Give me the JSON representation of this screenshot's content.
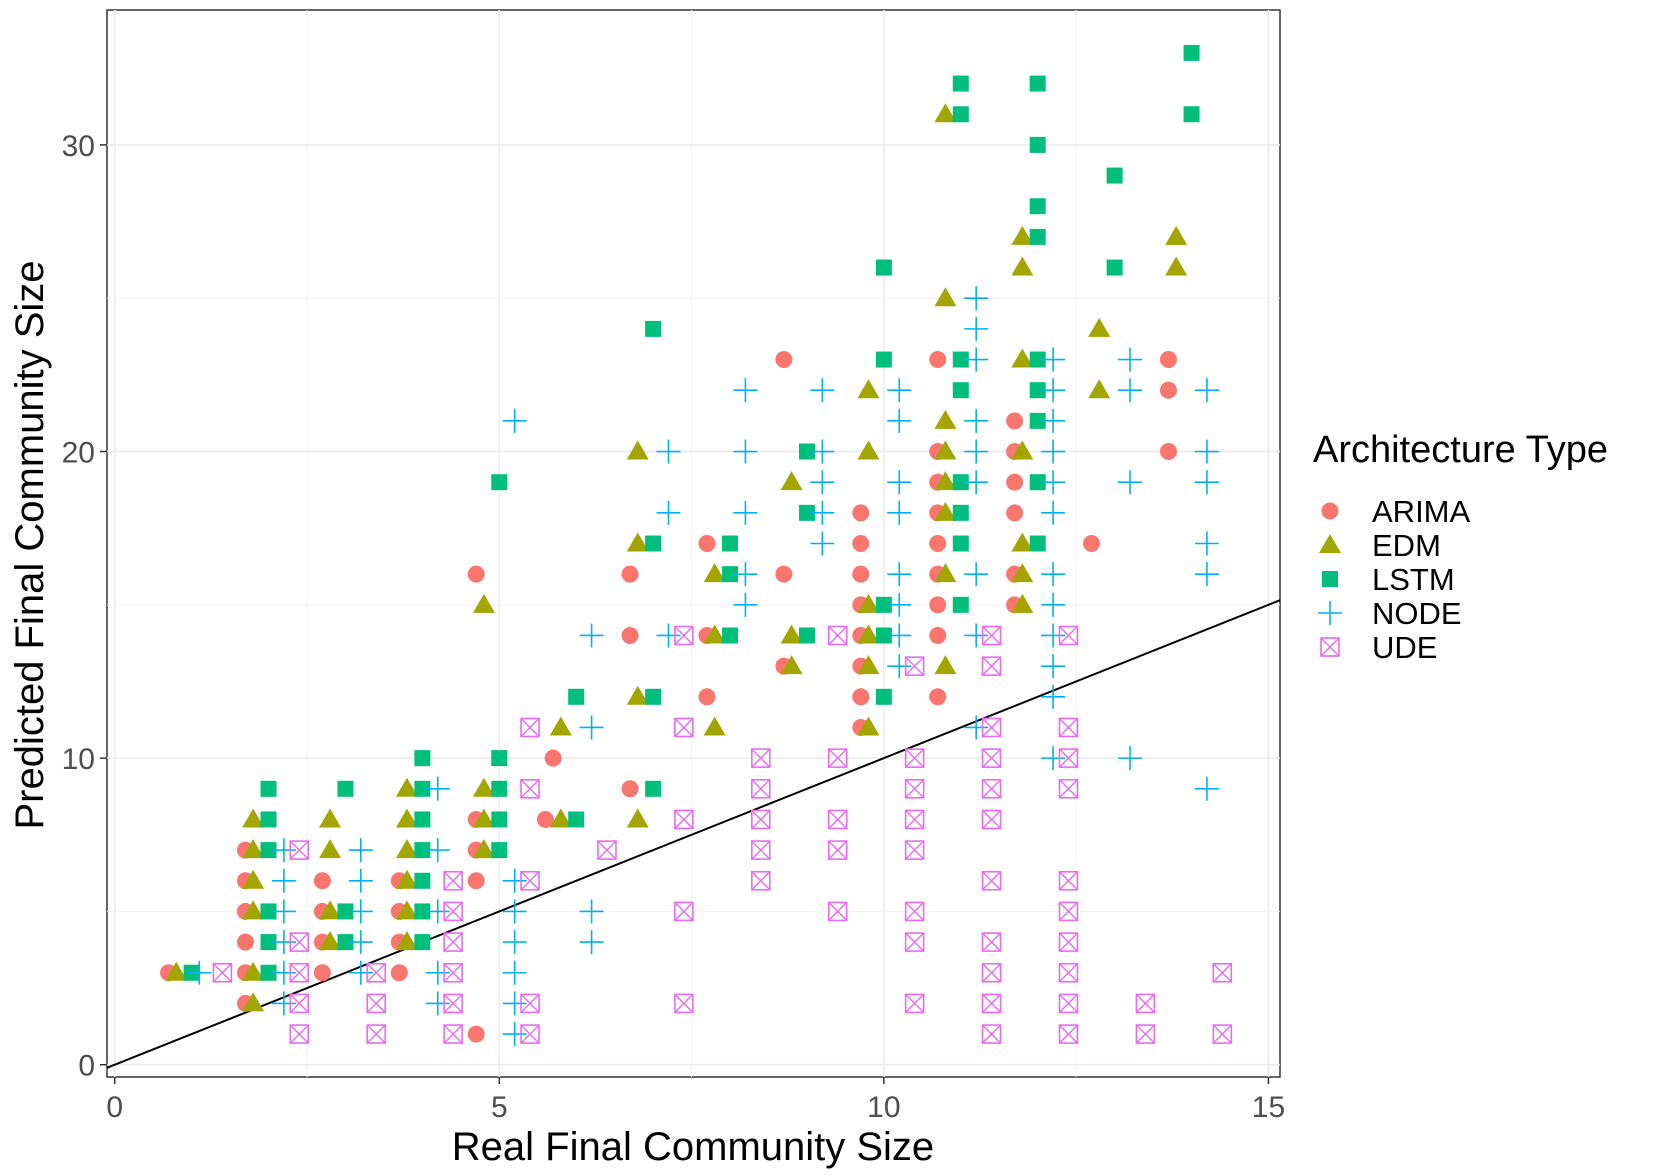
{
  "chart_data": {
    "type": "scatter",
    "xlabel": "Real Final Community Size",
    "ylabel": "Predicted Final Community Size",
    "xlim": [
      0,
      15
    ],
    "ylim": [
      0,
      33
    ],
    "x_ticks": [
      0,
      5,
      10,
      15
    ],
    "y_ticks": [
      0,
      10,
      20,
      30
    ],
    "grid": true,
    "legend_position": "right",
    "legend_title": "Architecture Type",
    "reference_line": {
      "slope": 1,
      "intercept": 0
    },
    "colors": {
      "ARIMA": "#F8766D",
      "EDM": "#A3A500",
      "LSTM": "#00BF7D",
      "NODE": "#00B0F6",
      "UDE": "#E76BF3"
    },
    "series": [
      {
        "name": "ARIMA",
        "shape": "circle",
        "points": [
          [
            0.7,
            3
          ],
          [
            1.7,
            2
          ],
          [
            1.7,
            3
          ],
          [
            1.7,
            4
          ],
          [
            1.7,
            5
          ],
          [
            1.7,
            6
          ],
          [
            1.7,
            7
          ],
          [
            2.7,
            3
          ],
          [
            2.7,
            4
          ],
          [
            2.7,
            5
          ],
          [
            2.7,
            6
          ],
          [
            3.7,
            3
          ],
          [
            3.7,
            4
          ],
          [
            3.7,
            5
          ],
          [
            3.7,
            6
          ],
          [
            4.7,
            1
          ],
          [
            4.7,
            6
          ],
          [
            4.7,
            7
          ],
          [
            4.7,
            8
          ],
          [
            4.7,
            16
          ],
          [
            5.6,
            8
          ],
          [
            5.7,
            10
          ],
          [
            6.7,
            9
          ],
          [
            6.7,
            14
          ],
          [
            6.7,
            16
          ],
          [
            7.7,
            12
          ],
          [
            7.7,
            14
          ],
          [
            7.7,
            17
          ],
          [
            8.7,
            13
          ],
          [
            8.7,
            16
          ],
          [
            8.7,
            23
          ],
          [
            9.7,
            11
          ],
          [
            9.7,
            12
          ],
          [
            9.7,
            13
          ],
          [
            9.7,
            14
          ],
          [
            9.7,
            15
          ],
          [
            9.7,
            16
          ],
          [
            9.7,
            17
          ],
          [
            9.7,
            18
          ],
          [
            10.7,
            12
          ],
          [
            10.7,
            14
          ],
          [
            10.7,
            15
          ],
          [
            10.7,
            16
          ],
          [
            10.7,
            17
          ],
          [
            10.7,
            18
          ],
          [
            10.7,
            19
          ],
          [
            10.7,
            20
          ],
          [
            10.7,
            23
          ],
          [
            11.7,
            15
          ],
          [
            11.7,
            16
          ],
          [
            11.7,
            18
          ],
          [
            11.7,
            19
          ],
          [
            11.7,
            20
          ],
          [
            11.7,
            21
          ],
          [
            12.7,
            17
          ],
          [
            13.7,
            20
          ],
          [
            13.7,
            22
          ],
          [
            13.7,
            23
          ]
        ]
      },
      {
        "name": "EDM",
        "shape": "triangle",
        "points": [
          [
            0.8,
            3
          ],
          [
            1.8,
            2
          ],
          [
            1.8,
            3
          ],
          [
            1.8,
            5
          ],
          [
            1.8,
            6
          ],
          [
            1.8,
            7
          ],
          [
            1.8,
            8
          ],
          [
            2.8,
            4
          ],
          [
            2.8,
            5
          ],
          [
            2.8,
            7
          ],
          [
            2.8,
            8
          ],
          [
            3.8,
            4
          ],
          [
            3.8,
            5
          ],
          [
            3.8,
            6
          ],
          [
            3.8,
            7
          ],
          [
            3.8,
            8
          ],
          [
            3.8,
            9
          ],
          [
            4.8,
            7
          ],
          [
            4.8,
            8
          ],
          [
            4.8,
            9
          ],
          [
            4.8,
            15
          ],
          [
            5.8,
            8
          ],
          [
            5.8,
            11
          ],
          [
            6.8,
            8
          ],
          [
            6.8,
            12
          ],
          [
            6.8,
            17
          ],
          [
            6.8,
            20
          ],
          [
            7.8,
            11
          ],
          [
            7.8,
            14
          ],
          [
            7.8,
            16
          ],
          [
            8.8,
            13
          ],
          [
            8.8,
            14
          ],
          [
            8.8,
            19
          ],
          [
            9.8,
            11
          ],
          [
            9.8,
            13
          ],
          [
            9.8,
            14
          ],
          [
            9.8,
            15
          ],
          [
            9.8,
            20
          ],
          [
            9.8,
            22
          ],
          [
            10.8,
            13
          ],
          [
            10.8,
            16
          ],
          [
            10.8,
            18
          ],
          [
            10.8,
            19
          ],
          [
            10.8,
            20
          ],
          [
            10.8,
            21
          ],
          [
            10.8,
            25
          ],
          [
            10.8,
            31
          ],
          [
            11.8,
            15
          ],
          [
            11.8,
            16
          ],
          [
            11.8,
            17
          ],
          [
            11.8,
            20
          ],
          [
            11.8,
            23
          ],
          [
            11.8,
            26
          ],
          [
            11.8,
            27
          ],
          [
            12.8,
            22
          ],
          [
            12.8,
            24
          ],
          [
            13.8,
            26
          ],
          [
            13.8,
            27
          ]
        ]
      },
      {
        "name": "LSTM",
        "shape": "square",
        "points": [
          [
            1.0,
            3
          ],
          [
            2.0,
            3
          ],
          [
            2.0,
            4
          ],
          [
            2.0,
            5
          ],
          [
            2.0,
            7
          ],
          [
            2.0,
            8
          ],
          [
            2.0,
            9
          ],
          [
            3.0,
            4
          ],
          [
            3.0,
            5
          ],
          [
            3.0,
            9
          ],
          [
            4.0,
            4
          ],
          [
            4.0,
            5
          ],
          [
            4.0,
            6
          ],
          [
            4.0,
            7
          ],
          [
            4.0,
            8
          ],
          [
            4.0,
            9
          ],
          [
            4.0,
            10
          ],
          [
            5.0,
            7
          ],
          [
            5.0,
            8
          ],
          [
            5.0,
            9
          ],
          [
            5.0,
            10
          ],
          [
            5.0,
            19
          ],
          [
            6.0,
            8
          ],
          [
            6.0,
            12
          ],
          [
            7.0,
            9
          ],
          [
            7.0,
            12
          ],
          [
            7.0,
            17
          ],
          [
            7.0,
            24
          ],
          [
            8.0,
            14
          ],
          [
            8.0,
            16
          ],
          [
            8.0,
            17
          ],
          [
            9.0,
            14
          ],
          [
            9.0,
            18
          ],
          [
            9.0,
            20
          ],
          [
            10.0,
            12
          ],
          [
            10.0,
            14
          ],
          [
            10.0,
            15
          ],
          [
            10.0,
            23
          ],
          [
            10.0,
            26
          ],
          [
            11.0,
            15
          ],
          [
            11.0,
            17
          ],
          [
            11.0,
            18
          ],
          [
            11.0,
            19
          ],
          [
            11.0,
            22
          ],
          [
            11.0,
            23
          ],
          [
            11.0,
            31
          ],
          [
            11.0,
            32
          ],
          [
            12.0,
            17
          ],
          [
            12.0,
            19
          ],
          [
            12.0,
            21
          ],
          [
            12.0,
            22
          ],
          [
            12.0,
            23
          ],
          [
            12.0,
            27
          ],
          [
            12.0,
            28
          ],
          [
            12.0,
            30
          ],
          [
            12.0,
            32
          ],
          [
            13.0,
            26
          ],
          [
            13.0,
            29
          ],
          [
            14.0,
            31
          ],
          [
            14.0,
            33
          ]
        ]
      },
      {
        "name": "NODE",
        "shape": "plus",
        "points": [
          [
            1.1,
            3
          ],
          [
            2.2,
            2
          ],
          [
            2.2,
            3
          ],
          [
            2.2,
            4
          ],
          [
            2.2,
            5
          ],
          [
            2.2,
            6
          ],
          [
            2.2,
            7
          ],
          [
            3.2,
            3
          ],
          [
            3.2,
            4
          ],
          [
            3.2,
            5
          ],
          [
            3.2,
            6
          ],
          [
            3.2,
            7
          ],
          [
            4.2,
            2
          ],
          [
            4.2,
            3
          ],
          [
            4.2,
            5
          ],
          [
            4.2,
            7
          ],
          [
            4.2,
            9
          ],
          [
            5.2,
            1
          ],
          [
            5.2,
            2
          ],
          [
            5.2,
            3
          ],
          [
            5.2,
            4
          ],
          [
            5.2,
            5
          ],
          [
            5.2,
            6
          ],
          [
            5.2,
            21
          ],
          [
            6.2,
            4
          ],
          [
            6.2,
            5
          ],
          [
            6.2,
            11
          ],
          [
            6.2,
            14
          ],
          [
            7.2,
            14
          ],
          [
            7.2,
            18
          ],
          [
            7.2,
            20
          ],
          [
            8.2,
            15
          ],
          [
            8.2,
            16
          ],
          [
            8.2,
            18
          ],
          [
            8.2,
            20
          ],
          [
            8.2,
            22
          ],
          [
            9.2,
            17
          ],
          [
            9.2,
            18
          ],
          [
            9.2,
            19
          ],
          [
            9.2,
            20
          ],
          [
            9.2,
            22
          ],
          [
            10.2,
            13
          ],
          [
            10.2,
            14
          ],
          [
            10.2,
            15
          ],
          [
            10.2,
            16
          ],
          [
            10.2,
            18
          ],
          [
            10.2,
            19
          ],
          [
            10.2,
            21
          ],
          [
            10.2,
            22
          ],
          [
            11.2,
            11
          ],
          [
            11.2,
            14
          ],
          [
            11.2,
            16
          ],
          [
            11.2,
            19
          ],
          [
            11.2,
            20
          ],
          [
            11.2,
            21
          ],
          [
            11.2,
            23
          ],
          [
            11.2,
            24
          ],
          [
            11.2,
            25
          ],
          [
            12.2,
            10
          ],
          [
            12.2,
            12
          ],
          [
            12.2,
            13
          ],
          [
            12.2,
            14
          ],
          [
            12.2,
            15
          ],
          [
            12.2,
            16
          ],
          [
            12.2,
            18
          ],
          [
            12.2,
            19
          ],
          [
            12.2,
            20
          ],
          [
            12.2,
            21
          ],
          [
            12.2,
            22
          ],
          [
            12.2,
            23
          ],
          [
            13.2,
            10
          ],
          [
            13.2,
            19
          ],
          [
            13.2,
            22
          ],
          [
            13.2,
            23
          ],
          [
            14.2,
            9
          ],
          [
            14.2,
            16
          ],
          [
            14.2,
            17
          ],
          [
            14.2,
            19
          ],
          [
            14.2,
            20
          ],
          [
            14.2,
            22
          ]
        ]
      },
      {
        "name": "UDE",
        "shape": "square-cross",
        "points": [
          [
            1.4,
            3
          ],
          [
            2.4,
            1
          ],
          [
            2.4,
            2
          ],
          [
            2.4,
            3
          ],
          [
            2.4,
            4
          ],
          [
            2.4,
            7
          ],
          [
            3.4,
            1
          ],
          [
            3.4,
            2
          ],
          [
            3.4,
            3
          ],
          [
            4.4,
            1
          ],
          [
            4.4,
            2
          ],
          [
            4.4,
            3
          ],
          [
            4.4,
            4
          ],
          [
            4.4,
            5
          ],
          [
            4.4,
            6
          ],
          [
            5.4,
            1
          ],
          [
            5.4,
            2
          ],
          [
            5.4,
            6
          ],
          [
            5.4,
            9
          ],
          [
            5.4,
            11
          ],
          [
            6.4,
            7
          ],
          [
            7.4,
            2
          ],
          [
            7.4,
            5
          ],
          [
            7.4,
            8
          ],
          [
            7.4,
            11
          ],
          [
            7.4,
            14
          ],
          [
            8.4,
            6
          ],
          [
            8.4,
            7
          ],
          [
            8.4,
            8
          ],
          [
            8.4,
            9
          ],
          [
            8.4,
            10
          ],
          [
            9.4,
            5
          ],
          [
            9.4,
            7
          ],
          [
            9.4,
            8
          ],
          [
            9.4,
            10
          ],
          [
            9.4,
            14
          ],
          [
            10.4,
            2
          ],
          [
            10.4,
            4
          ],
          [
            10.4,
            5
          ],
          [
            10.4,
            7
          ],
          [
            10.4,
            8
          ],
          [
            10.4,
            9
          ],
          [
            10.4,
            10
          ],
          [
            10.4,
            13
          ],
          [
            11.4,
            1
          ],
          [
            11.4,
            2
          ],
          [
            11.4,
            3
          ],
          [
            11.4,
            4
          ],
          [
            11.4,
            6
          ],
          [
            11.4,
            8
          ],
          [
            11.4,
            9
          ],
          [
            11.4,
            10
          ],
          [
            11.4,
            11
          ],
          [
            11.4,
            13
          ],
          [
            11.4,
            14
          ],
          [
            12.4,
            1
          ],
          [
            12.4,
            2
          ],
          [
            12.4,
            3
          ],
          [
            12.4,
            4
          ],
          [
            12.4,
            5
          ],
          [
            12.4,
            6
          ],
          [
            12.4,
            9
          ],
          [
            12.4,
            10
          ],
          [
            12.4,
            11
          ],
          [
            12.4,
            14
          ],
          [
            13.4,
            1
          ],
          [
            13.4,
            2
          ],
          [
            14.4,
            1
          ],
          [
            14.4,
            3
          ]
        ]
      }
    ]
  }
}
